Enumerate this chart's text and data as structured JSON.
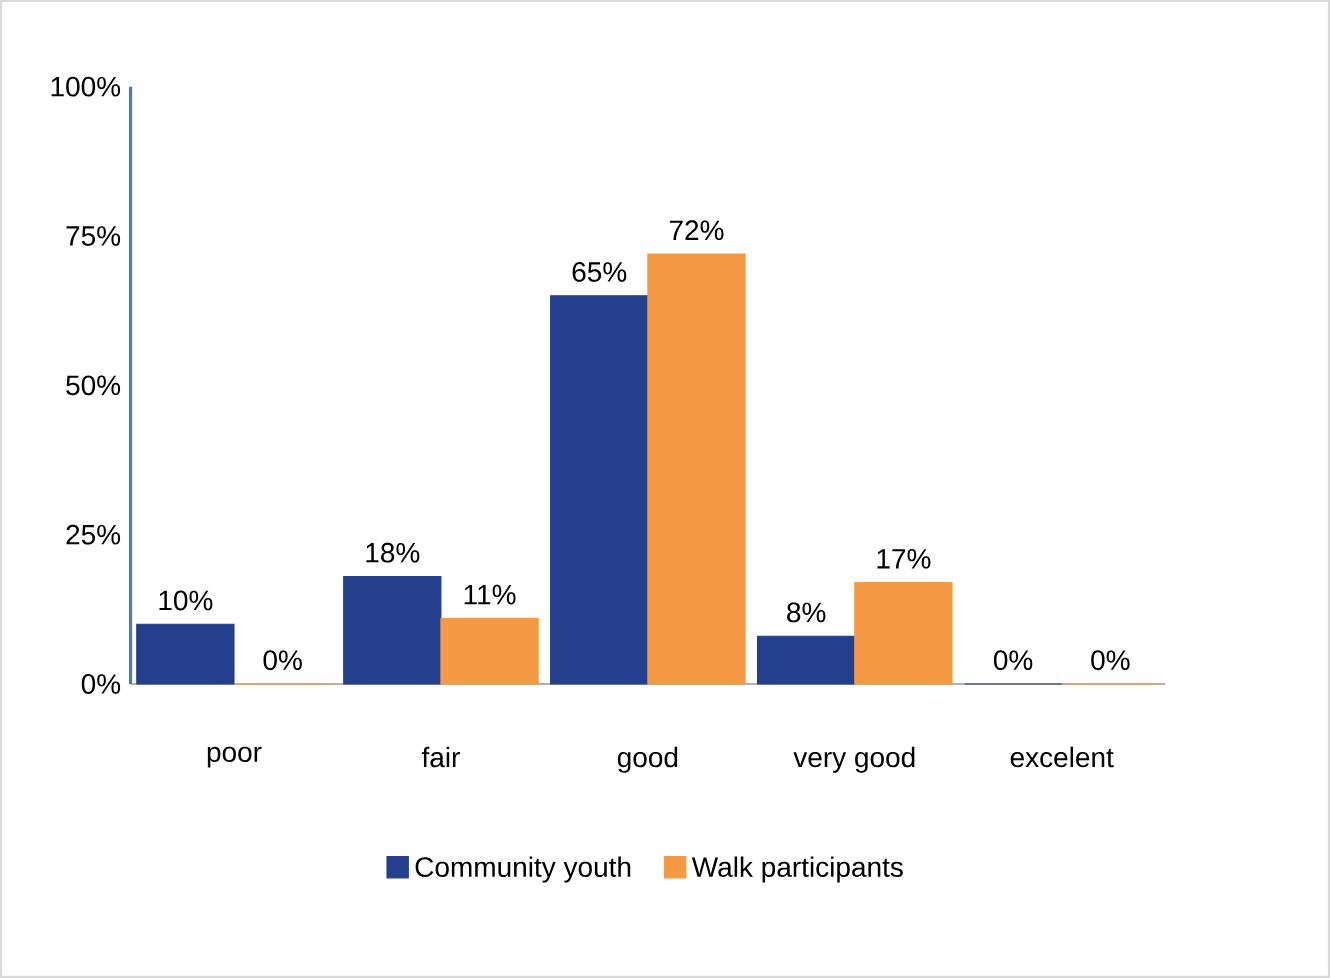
{
  "chart_data": {
    "type": "bar",
    "categories": [
      "poor",
      "fair",
      "good",
      "very good",
      "excelent"
    ],
    "series": [
      {
        "name": "Community youth",
        "color": "#233f8e",
        "values": [
          10,
          18,
          65,
          8,
          0
        ],
        "value_labels": [
          "10%",
          "18%",
          "65%",
          "8%",
          "0%"
        ]
      },
      {
        "name": "Walk participants",
        "color": "#f59a44",
        "values": [
          0,
          11,
          72,
          17,
          0
        ],
        "value_labels": [
          "0%",
          "11%",
          "72%",
          "17%",
          "0%"
        ]
      }
    ],
    "ylim": [
      0,
      100
    ],
    "yticks": [
      {
        "value": 0,
        "label": "0%"
      },
      {
        "value": 25,
        "label": "25%"
      },
      {
        "value": 50,
        "label": "50%"
      },
      {
        "value": 75,
        "label": "75%"
      },
      {
        "value": 100,
        "label": "100%"
      }
    ],
    "grid": false,
    "legend": "bottom"
  }
}
